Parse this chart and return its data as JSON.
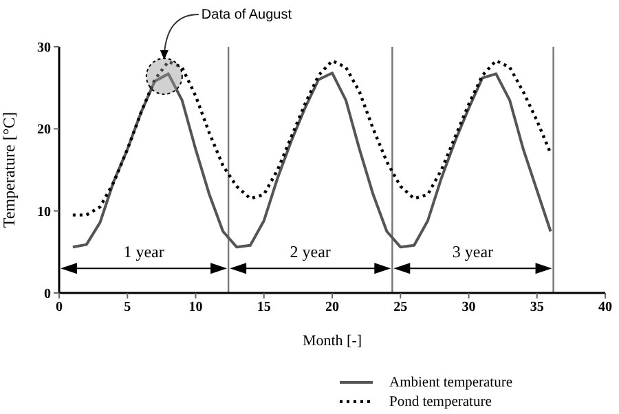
{
  "chart_data": {
    "type": "line",
    "xlabel": "Month [-]",
    "ylabel": "Temperature  [°C]",
    "xlim": [
      0,
      40
    ],
    "xticks": [
      0,
      5,
      10,
      15,
      20,
      25,
      30,
      35,
      40
    ],
    "ylim": [
      0,
      30
    ],
    "yticks": [
      0,
      10,
      20,
      30
    ],
    "legend": "bottom right",
    "marker": "none",
    "series": [
      {
        "name": "Ambient temperature",
        "color": "#555555",
        "line_style": "solid",
        "x": [
          1,
          2,
          3,
          4,
          5,
          6,
          7,
          8,
          9,
          10,
          11,
          12,
          13,
          14,
          15,
          16,
          17,
          18,
          19,
          20,
          21,
          22,
          23,
          24,
          25,
          26,
          27,
          28,
          29,
          30,
          31,
          32,
          33,
          34,
          35,
          36
        ],
        "values": [
          5.6,
          5.9,
          8.6,
          13.6,
          17.5,
          22,
          25.8,
          26.7,
          23.5,
          17.5,
          12,
          7.5,
          5.6,
          5.8,
          8.8,
          14,
          18.5,
          22.5,
          26,
          26.8,
          23.5,
          17.5,
          12,
          7.5,
          5.6,
          5.8,
          8.8,
          14,
          18.5,
          22.5,
          26.2,
          26.7,
          23.5,
          17.5,
          12.5,
          7.5
        ]
      },
      {
        "name": "Pond temperature",
        "color": "#000000",
        "line_style": "dotted",
        "x": [
          1,
          2,
          3,
          4,
          5,
          6,
          7,
          8,
          9,
          10,
          11,
          12,
          13,
          14,
          15,
          16,
          17,
          18,
          19,
          20,
          21,
          22,
          23,
          24,
          25,
          26,
          27,
          28,
          29,
          30,
          31,
          32,
          33,
          34,
          35,
          36
        ],
        "values": [
          9.5,
          9.5,
          10.5,
          13.5,
          17.5,
          22,
          26,
          28.2,
          27.5,
          24,
          19.5,
          15.5,
          13,
          11.5,
          12,
          15,
          19,
          23,
          26.5,
          28.3,
          27.5,
          24.5,
          20,
          16,
          13,
          11.5,
          12,
          15,
          19,
          23,
          26.5,
          28.3,
          27.5,
          24.5,
          21,
          17
        ]
      }
    ],
    "ref_lines": [
      {
        "axis": "x",
        "value": 12.4,
        "color": "#777777"
      },
      {
        "axis": "x",
        "value": 24.4,
        "color": "#777777"
      },
      {
        "axis": "x",
        "value": 36.2,
        "color": "#777777"
      }
    ],
    "annotations": [
      "Data of August",
      "1 year",
      "2 year",
      "3 year"
    ]
  }
}
